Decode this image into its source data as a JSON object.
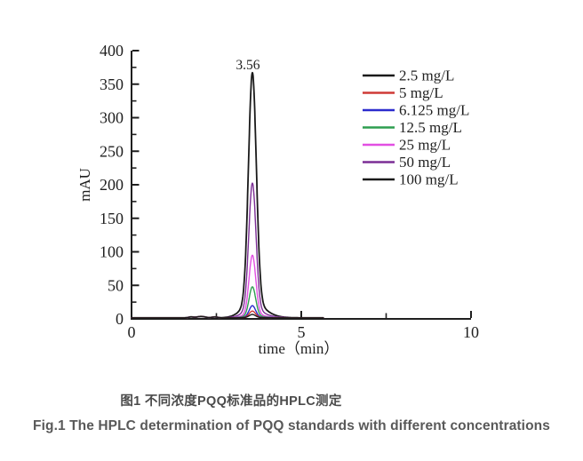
{
  "figure": {
    "caption_zh": "图1 不同浓度PQQ标准品的HPLC测定",
    "caption_en": "Fig.1 The HPLC determination of PQQ standards with different concentrations"
  },
  "chart_data": {
    "type": "line",
    "subtype": "hplc-chromatogram",
    "title": "",
    "xlabel": "time（min）",
    "ylabel": "mAU",
    "xlim": [
      0,
      10
    ],
    "ylim": [
      0,
      400
    ],
    "x_major_ticks": [
      0,
      5,
      10
    ],
    "x_tick_labels": [
      "0",
      "5",
      "10"
    ],
    "x_minor_ticks": [
      2.5,
      7.5
    ],
    "y_major_ticks": [
      0,
      50,
      100,
      150,
      200,
      250,
      300,
      350,
      400
    ],
    "y_tick_labels": [
      "0",
      "50",
      "100",
      "150",
      "200",
      "250",
      "300",
      "350",
      "400"
    ],
    "y_minor_ticks": [
      25,
      75,
      125,
      175,
      225,
      275,
      325,
      375
    ],
    "grid": false,
    "legend_position": "upper-right",
    "peak_annotation": {
      "label": "3.56",
      "time_min": 3.56
    },
    "baseline_mAU": 1.6,
    "trace_start_min": 0,
    "trace_end_min": 5.65,
    "noise_bumps": [
      {
        "time_min": 1.75,
        "height_mAU": 1.3,
        "sigma_min": 0.07
      },
      {
        "time_min": 2.05,
        "height_mAU": 2.0,
        "sigma_min": 0.12
      },
      {
        "time_min": 2.45,
        "height_mAU": 1.3,
        "sigma_min": 0.08
      }
    ],
    "series": [
      {
        "name": "2.5 mg/L",
        "color": "#1a1a1a",
        "retention_time_min": 3.56,
        "peak_height_mAU": 5
      },
      {
        "name": "5 mg/L",
        "color": "#cf3a36",
        "retention_time_min": 3.56,
        "peak_height_mAU": 10
      },
      {
        "name": "6.125 mg/L",
        "color": "#2b2bcd",
        "retention_time_min": 3.56,
        "peak_height_mAU": 18
      },
      {
        "name": "12.5 mg/L",
        "color": "#2e9e50",
        "retention_time_min": 3.56,
        "peak_height_mAU": 46
      },
      {
        "name": "25 mg/L",
        "color": "#e24fe2",
        "retention_time_min": 3.56,
        "peak_height_mAU": 93
      },
      {
        "name": "50 mg/L",
        "color": "#7b2e95",
        "retention_time_min": 3.56,
        "peak_height_mAU": 200
      },
      {
        "name": "100 mg/L",
        "color": "#1a1a1a",
        "retention_time_min": 3.56,
        "peak_height_mAU": 364
      }
    ]
  }
}
